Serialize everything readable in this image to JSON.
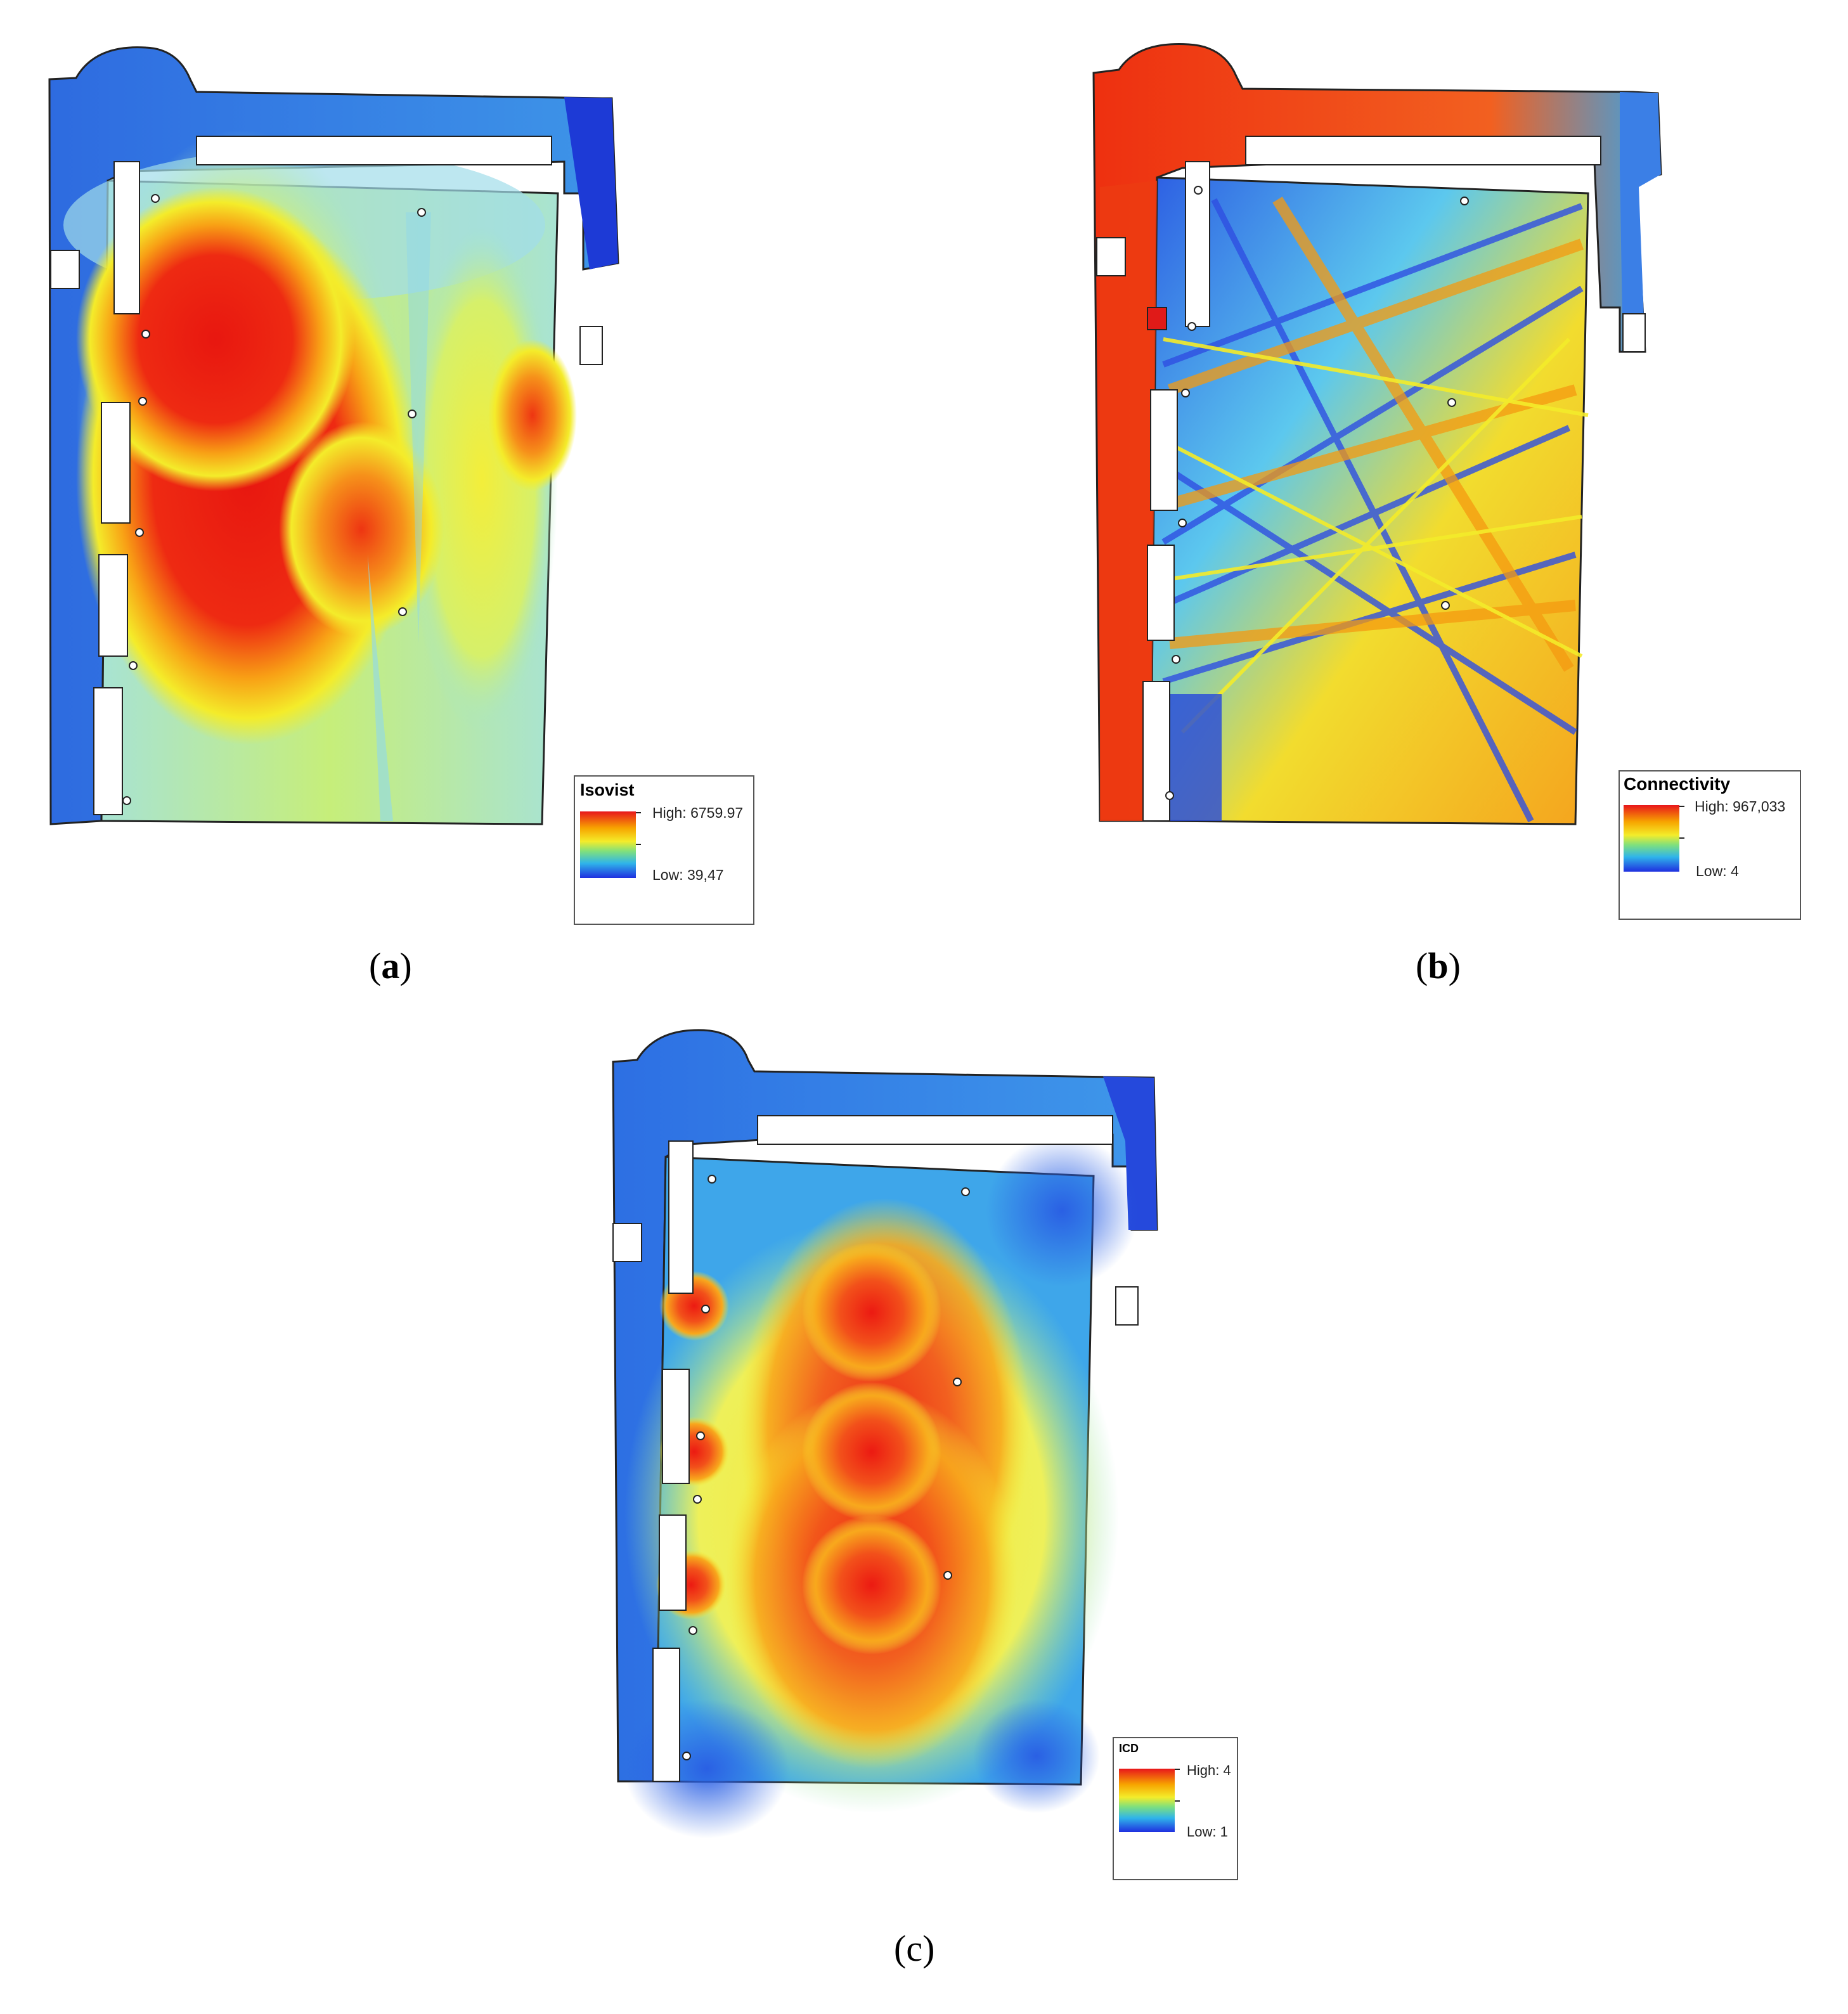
{
  "panels": {
    "a": {
      "caption": "a",
      "legend": {
        "title": "Isovist",
        "high": "High: 6759.97",
        "low": "Low: 39,47"
      },
      "colors": {
        "base": "#2f6fe3",
        "mid": "#9be6cf",
        "hot": "#ee1b14"
      }
    },
    "b": {
      "caption": "b",
      "legend": {
        "title": "Connectivity",
        "high": "High: 967,033",
        "low": "Low: 4"
      },
      "colors": {
        "base": "#2456e0",
        "mid": "#55c6ee",
        "hot": "#f08a14"
      }
    },
    "c": {
      "caption": "c",
      "legend": {
        "title": "ICD",
        "high": "High: 4",
        "low": "Low: 1"
      },
      "colors": {
        "base": "#2a72e6",
        "mid": "#f6ee38",
        "hot": "#ee1b14"
      }
    }
  },
  "ramp_colors": [
    "#e8161b",
    "#f7a400",
    "#f4ec2a",
    "#7fe07d",
    "#2fb4ea",
    "#1f2fe0"
  ]
}
